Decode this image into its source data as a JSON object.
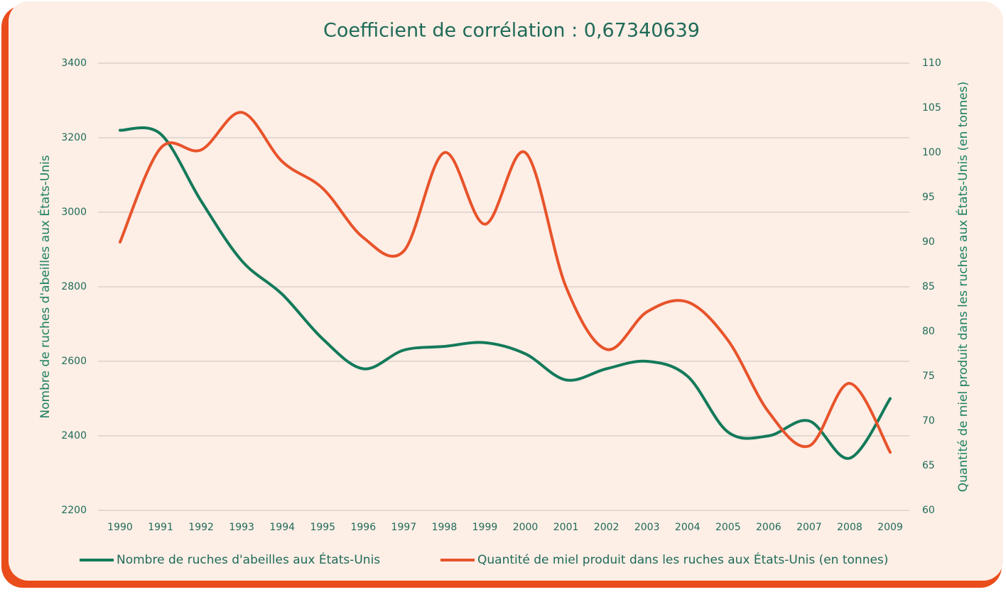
{
  "chart_data": {
    "type": "line",
    "title": "Coefficient de corrélation : 0,67340639",
    "categories": [
      "1990",
      "1991",
      "1992",
      "1993",
      "1994",
      "1995",
      "1996",
      "1997",
      "1998",
      "1999",
      "2000",
      "2001",
      "2002",
      "2003",
      "2004",
      "2005",
      "2006",
      "2007",
      "2008",
      "2009"
    ],
    "ylabel": "Nombre de ruches d'abeilles aux États-Unis",
    "y2label": "Quantité de miel produit dans les ruches aux États-Unis (en tonnes)",
    "ylim": [
      2200,
      3400
    ],
    "yticks": [
      2200,
      2400,
      2600,
      2800,
      3000,
      3200,
      3400
    ],
    "y2lim": [
      60,
      110
    ],
    "y2ticks": [
      60,
      65,
      70,
      75,
      80,
      85,
      90,
      95,
      100,
      105,
      110
    ],
    "grid": true,
    "legend": "bottom",
    "series": [
      {
        "name": "Nombre de ruches d'abeilles aux États-Unis",
        "color": "#137a5a",
        "values": [
          3220,
          3210,
          3030,
          2870,
          2780,
          2660,
          2580,
          2630,
          2640,
          2650,
          2620,
          2550,
          2580,
          2600,
          2560,
          2410,
          2400,
          2440,
          2340,
          2500
        ]
      },
      {
        "name": "Quantité de miel produit dans les ruches aux États-Unis (en tonnes)",
        "color": "#e8532a",
        "axis": "y2",
        "values": [
          90,
          100.5,
          100.3,
          104.5,
          99,
          96,
          90.5,
          89,
          100,
          92,
          100,
          85,
          78,
          82.2,
          83.3,
          79,
          71,
          67.2,
          74.2,
          66.5
        ]
      }
    ]
  }
}
